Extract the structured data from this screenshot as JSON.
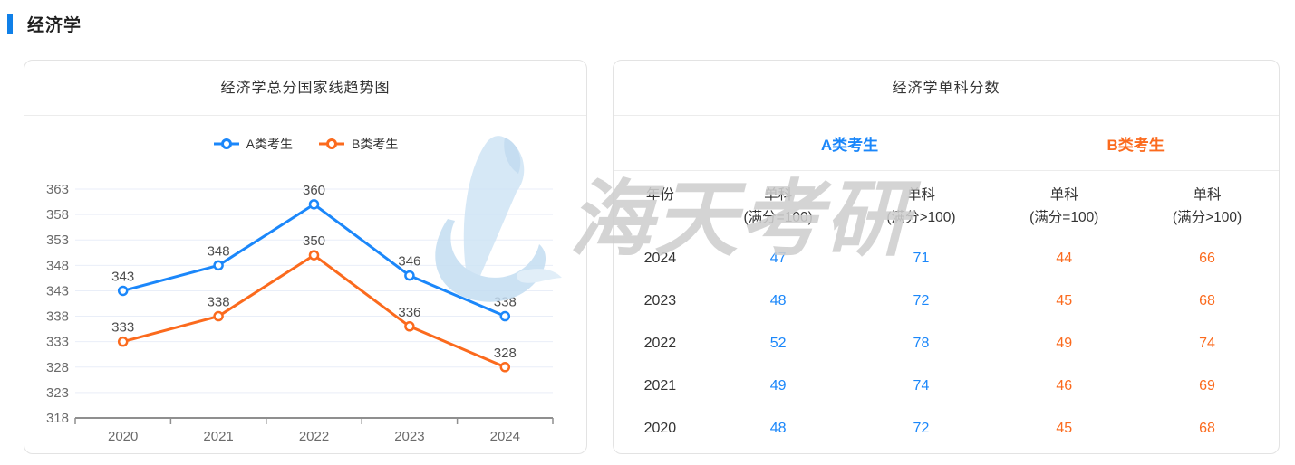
{
  "header": {
    "title": "经济学",
    "accent_color": "#1080e8"
  },
  "trend_card": {
    "title": "经济学总分国家线趋势图"
  },
  "chart_data": {
    "type": "line",
    "title": "经济学总分国家线趋势图",
    "categories": [
      "2020",
      "2021",
      "2022",
      "2023",
      "2024"
    ],
    "series": [
      {
        "name": "A类考生",
        "color": "#1b87fa",
        "values": [
          343,
          348,
          360,
          346,
          338
        ]
      },
      {
        "name": "B类考生",
        "color": "#fb6a1d",
        "values": [
          333,
          338,
          350,
          336,
          328
        ]
      }
    ],
    "xlabel": "",
    "ylabel": "",
    "ylim": [
      318,
      363
    ],
    "ytick_step": 5,
    "grid": true,
    "legend_position": "top",
    "marker": "hollow-circle",
    "data_labels": true
  },
  "score_table": {
    "title": "经济学单科分数",
    "groups": [
      {
        "label": "A类考生",
        "color": "#1b87fa"
      },
      {
        "label": "B类考生",
        "color": "#fb6a1d"
      }
    ],
    "columns": [
      [
        "年份",
        ""
      ],
      [
        "单科",
        "(满分=100)"
      ],
      [
        "单科",
        "(满分>100)"
      ],
      [
        "单科",
        "(满分=100)"
      ],
      [
        "单科",
        "(满分>100)"
      ]
    ],
    "rows": [
      [
        "2024",
        "47",
        "71",
        "44",
        "66"
      ],
      [
        "2023",
        "48",
        "72",
        "45",
        "68"
      ],
      [
        "2022",
        "52",
        "78",
        "49",
        "74"
      ],
      [
        "2021",
        "49",
        "74",
        "46",
        "69"
      ],
      [
        "2020",
        "48",
        "72",
        "45",
        "68"
      ]
    ]
  },
  "watermark": {
    "text": "海天考研",
    "logo": "haitian-kaoyan-logo",
    "logo_color": "#cfe4f5",
    "text_color": "#cfcfcf"
  }
}
